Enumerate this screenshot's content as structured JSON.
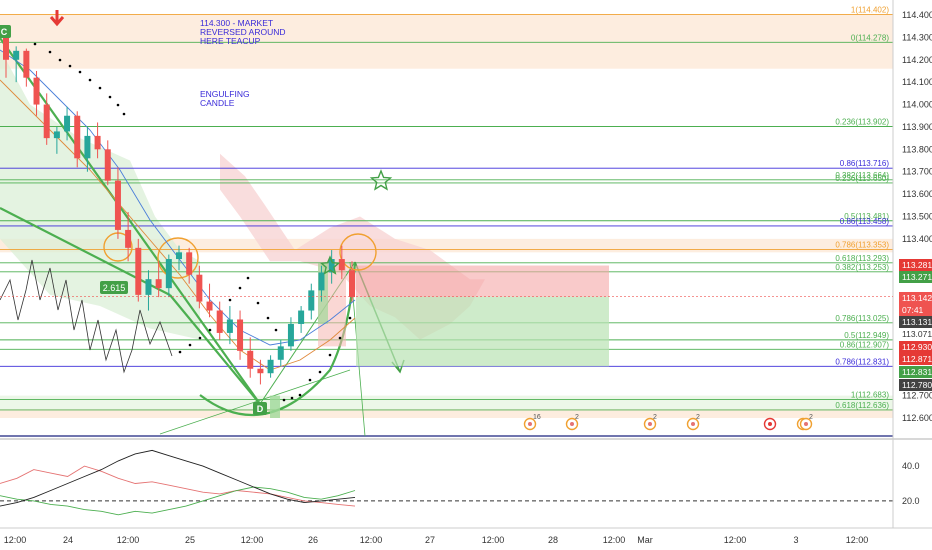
{
  "chart_data": {
    "type": "candlestick",
    "instrument_range": [
      112.56,
      114.42
    ],
    "y_axis": {
      "ticks": [
        114.4,
        114.3,
        114.2,
        114.1,
        114.0,
        113.9,
        113.8,
        113.7,
        113.6,
        113.5,
        113.4,
        112.7,
        112.6
      ]
    },
    "x_axis": {
      "ticks": [
        "12:00",
        "24",
        "12:00",
        "25",
        "12:00",
        "26",
        "12:00",
        "27",
        "12:00",
        "28",
        "12:00",
        "Mar",
        "12:00",
        "3",
        "12:00"
      ]
    },
    "fib_levels": [
      {
        "label": "1(114.402)",
        "price": 114.402,
        "color": "#f0a030"
      },
      {
        "label": "0(114.278)",
        "price": 114.278,
        "color": "#4caf50"
      },
      {
        "label": "0.236(113.902)",
        "price": 113.902,
        "color": "#4caf50"
      },
      {
        "label": "0.86(113.716)",
        "price": 113.716,
        "color": "#3a2bd9"
      },
      {
        "label": "0.382(113.664)",
        "price": 113.664,
        "color": "#4caf50"
      },
      {
        "label": "0.236(113.650)",
        "price": 113.65,
        "color": "#4caf50"
      },
      {
        "label": "0.5(113.481)",
        "price": 113.481,
        "color": "#4caf50"
      },
      {
        "label": "0.86(113.458)",
        "price": 113.458,
        "color": "#3a2bd9"
      },
      {
        "label": "0.786(113.353)",
        "price": 113.353,
        "color": "#f0a030"
      },
      {
        "label": "0.618(113.293)",
        "price": 113.293,
        "color": "#4caf50"
      },
      {
        "label": "0.382(113.253)",
        "price": 113.253,
        "color": "#4caf50"
      },
      {
        "label": "0.786(113.025)",
        "price": 113.025,
        "color": "#4caf50"
      },
      {
        "label": "0.5(112.949)",
        "price": 112.949,
        "color": "#4caf50"
      },
      {
        "label": "0.86(112.907)",
        "price": 112.907,
        "color": "#4caf50"
      },
      {
        "label": "0.786(112.831)",
        "price": 112.831,
        "color": "#3a2bd9"
      },
      {
        "label": "1(112.683)",
        "price": 112.683,
        "color": "#4caf50"
      },
      {
        "label": "0.618(112.636)",
        "price": 112.636,
        "color": "#4caf50"
      }
    ],
    "price_labels": [
      {
        "text": "113.281",
        "price": 113.281,
        "bg": "#e53935",
        "fg": "#ffffff"
      },
      {
        "text": "113.271",
        "price": 113.271,
        "bg": "#43a047",
        "fg": "#ffffff"
      },
      {
        "text": "113.142",
        "price": 113.142,
        "bg": "#ef5350",
        "fg": "#ffffff"
      },
      {
        "text": "07:41",
        "price": 113.112,
        "bg": "#ef5350",
        "fg": "#ffffff"
      },
      {
        "text": "113.131",
        "price": 113.131,
        "bg": "#424242",
        "fg": "#ffffff"
      },
      {
        "text": "113.071",
        "price": 113.071,
        "bg": "#ffffff",
        "fg": "#333333"
      },
      {
        "text": "112.930",
        "price": 112.93,
        "bg": "#e53935",
        "fg": "#ffffff"
      },
      {
        "text": "112.871",
        "price": 112.871,
        "bg": "#e53935",
        "fg": "#ffffff"
      },
      {
        "text": "112.831",
        "price": 112.831,
        "bg": "#43a047",
        "fg": "#ffffff"
      },
      {
        "text": "112.780",
        "price": 112.78,
        "bg": "#424242",
        "fg": "#ffffff"
      }
    ],
    "annotations": [
      {
        "text": "114.300 - MARKET",
        "line": 0
      },
      {
        "text": "REVERSED AROUND",
        "line": 1
      },
      {
        "text": "HERE   TEACUP",
        "line": 2
      },
      {
        "text": "ENGULFING",
        "line": 3
      },
      {
        "text": "CANDLE",
        "line": 4
      }
    ],
    "pattern_points": [
      {
        "label": "C"
      },
      {
        "label": "D"
      },
      {
        "label": "2.615"
      }
    ],
    "event_icons": [
      {
        "count": "16"
      },
      {
        "count": "2"
      },
      {
        "count": "2"
      },
      {
        "count": "2"
      },
      {
        "count": ""
      },
      {
        "count": ""
      },
      {
        "count": "2"
      }
    ],
    "candles": [
      [
        114.31,
        114.33,
        114.12,
        114.2
      ],
      [
        114.2,
        114.26,
        114.1,
        114.24
      ],
      [
        114.24,
        114.25,
        114.08,
        114.12
      ],
      [
        114.12,
        114.15,
        113.95,
        114.0
      ],
      [
        114.0,
        114.05,
        113.82,
        113.85
      ],
      [
        113.85,
        113.9,
        113.78,
        113.88
      ],
      [
        113.88,
        113.99,
        113.84,
        113.95
      ],
      [
        113.95,
        113.97,
        113.72,
        113.76
      ],
      [
        113.76,
        113.9,
        113.7,
        113.86
      ],
      [
        113.86,
        113.92,
        113.76,
        113.8
      ],
      [
        113.8,
        113.84,
        113.64,
        113.66
      ],
      [
        113.66,
        113.72,
        113.4,
        113.44
      ],
      [
        113.44,
        113.52,
        113.3,
        113.36
      ],
      [
        113.36,
        113.4,
        113.12,
        113.15
      ],
      [
        113.15,
        113.26,
        113.08,
        113.22
      ],
      [
        113.22,
        113.3,
        113.14,
        113.18
      ],
      [
        113.18,
        113.33,
        113.14,
        113.31
      ],
      [
        113.31,
        113.37,
        113.26,
        113.34
      ],
      [
        113.34,
        113.36,
        113.2,
        113.24
      ],
      [
        113.24,
        113.28,
        113.09,
        113.12
      ],
      [
        113.12,
        113.2,
        113.05,
        113.08
      ],
      [
        113.08,
        113.12,
        112.95,
        112.98
      ],
      [
        112.98,
        113.1,
        112.93,
        113.04
      ],
      [
        113.04,
        113.08,
        112.86,
        112.9
      ],
      [
        112.9,
        112.96,
        112.78,
        112.82
      ],
      [
        112.82,
        112.86,
        112.75,
        112.8
      ],
      [
        112.8,
        112.88,
        112.78,
        112.86
      ],
      [
        112.86,
        112.95,
        112.83,
        112.92
      ],
      [
        112.92,
        113.05,
        112.9,
        113.02
      ],
      [
        113.02,
        113.1,
        112.98,
        113.08
      ],
      [
        113.08,
        113.2,
        113.04,
        113.17
      ],
      [
        113.17,
        113.28,
        113.12,
        113.25
      ],
      [
        113.25,
        113.35,
        113.2,
        113.31
      ],
      [
        113.31,
        113.37,
        113.22,
        113.26
      ],
      [
        113.26,
        113.3,
        113.12,
        113.14
      ]
    ],
    "oscillator": {
      "levels": [
        40.0,
        20.0
      ],
      "series": [
        {
          "color": "#e57373",
          "values": [
            30,
            33,
            38,
            36,
            34,
            40,
            37,
            33,
            30,
            31,
            29,
            27,
            25,
            24,
            26,
            25,
            24,
            22,
            20,
            19,
            18,
            17
          ]
        },
        {
          "color": "#4caf50",
          "values": [
            23,
            21,
            20,
            18,
            17,
            15,
            14,
            12,
            14,
            13,
            15,
            17,
            20,
            23,
            26,
            28,
            27,
            25,
            22,
            21,
            23,
            26
          ]
        },
        {
          "color": "#222222",
          "values": [
            17,
            19,
            22,
            26,
            30,
            34,
            38,
            43,
            47,
            49,
            46,
            43,
            40,
            36,
            32,
            28,
            24,
            21,
            19,
            20,
            21,
            22
          ]
        }
      ]
    }
  }
}
